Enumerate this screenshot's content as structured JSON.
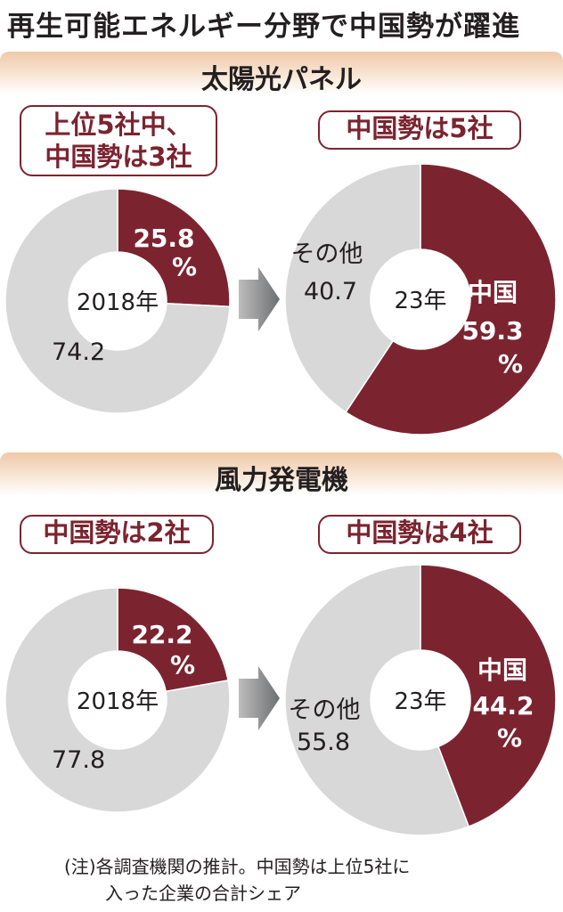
{
  "title": "再生可能エネルギー分野で中国勢が躍進",
  "sections": [
    {
      "heading": "太陽光パネル"
    },
    {
      "heading": "風力発電機"
    }
  ],
  "callouts": {
    "solar_2018": "上位5社中、\n中国勢は3社",
    "solar_2023": "中国勢は5社",
    "wind_2018": "中国勢は2社",
    "wind_2023": "中国勢は4社"
  },
  "note": {
    "line1": "(注)各調査機関の推計。中国勢は上位5社に",
    "line2": "入った企業の合計シェア"
  },
  "colors": {
    "china": "#7b2430",
    "other": "#d9d8d8",
    "arrow": "#6d6e70"
  },
  "chart_data": [
    {
      "type": "pie",
      "donut": true,
      "section": "太陽光パネル",
      "center_label": "2018年",
      "slices": [
        {
          "label": "",
          "value": 25.8,
          "value_text": "25.8",
          "unit": "%",
          "color": "#7b2430"
        },
        {
          "label": "",
          "value": 74.2,
          "value_text": "74.2",
          "unit": "",
          "color": "#d9d8d8"
        }
      ]
    },
    {
      "type": "pie",
      "donut": true,
      "section": "太陽光パネル",
      "center_label": "23年",
      "slices": [
        {
          "label": "中国",
          "value": 59.3,
          "value_text": "59.3",
          "unit": "%",
          "color": "#7b2430"
        },
        {
          "label": "その他",
          "value": 40.7,
          "value_text": "40.7",
          "unit": "",
          "color": "#d9d8d8"
        }
      ]
    },
    {
      "type": "pie",
      "donut": true,
      "section": "風力発電機",
      "center_label": "2018年",
      "slices": [
        {
          "label": "",
          "value": 22.2,
          "value_text": "22.2",
          "unit": "%",
          "color": "#7b2430"
        },
        {
          "label": "",
          "value": 77.8,
          "value_text": "77.8",
          "unit": "",
          "color": "#d9d8d8"
        }
      ]
    },
    {
      "type": "pie",
      "donut": true,
      "section": "風力発電機",
      "center_label": "23年",
      "slices": [
        {
          "label": "中国",
          "value": 44.2,
          "value_text": "44.2",
          "unit": "%",
          "color": "#7b2430"
        },
        {
          "label": "その他",
          "value": 55.8,
          "value_text": "55.8",
          "unit": "",
          "color": "#d9d8d8"
        }
      ]
    }
  ]
}
